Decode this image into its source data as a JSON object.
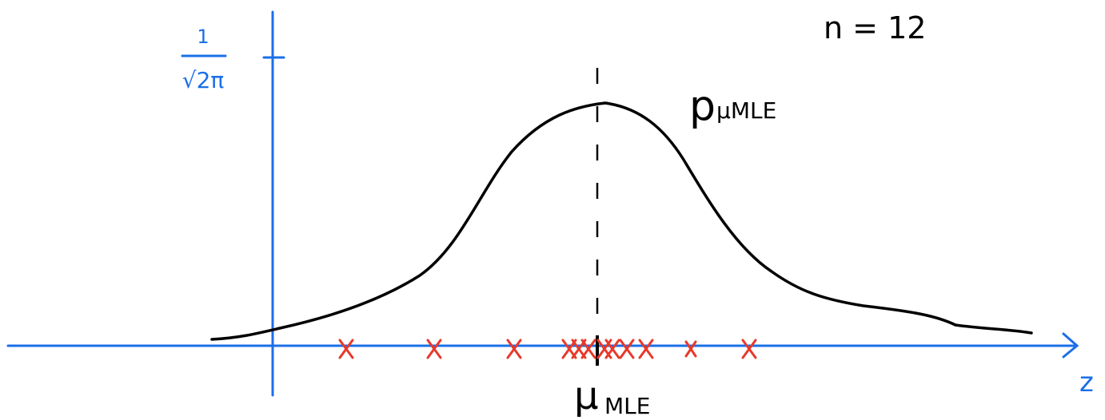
{
  "labels": {
    "sample_size": "n = 12",
    "y_tick_numerator": "1",
    "y_tick_denominator": "√2π",
    "curve_label": "p",
    "curve_label_subscript": "μMLE",
    "mean_label": "μ",
    "mean_label_subscript": "MLE",
    "x_axis": "z"
  }
}
